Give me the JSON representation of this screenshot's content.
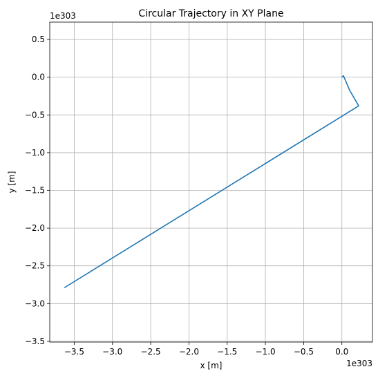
{
  "chart_data": {
    "type": "line",
    "title": "Circular Trajectory in XY Plane",
    "xlabel": "x [m]",
    "ylabel": "y [m]",
    "x_offset_label": "1e303",
    "y_offset_label": "1e303",
    "xlim": [
      -3.82,
      0.4
    ],
    "ylim": [
      -3.51,
      0.73
    ],
    "x_ticks": [
      -3.5,
      -3.0,
      -2.5,
      -2.0,
      -1.5,
      -1.0,
      -0.5,
      0.0
    ],
    "x_tick_labels": [
      "−3.5",
      "−3.0",
      "−2.5",
      "−2.0",
      "−1.5",
      "−1.0",
      "−0.5",
      "0.0"
    ],
    "y_ticks": [
      0.5,
      0.0,
      -0.5,
      -1.0,
      -1.5,
      -2.0,
      -2.5,
      -3.0,
      -3.5
    ],
    "y_tick_labels": [
      "0.5",
      "0.0",
      "−0.5",
      "−1.0",
      "−1.5",
      "−2.0",
      "−2.5",
      "−3.0",
      "−3.5"
    ],
    "grid": true,
    "series": [
      {
        "color": "#1f77b4",
        "x": [
          0.0,
          0.02,
          0.1,
          0.22,
          -3.63
        ],
        "y": [
          0.0,
          0.02,
          -0.17,
          -0.38,
          -2.79
        ]
      }
    ]
  }
}
